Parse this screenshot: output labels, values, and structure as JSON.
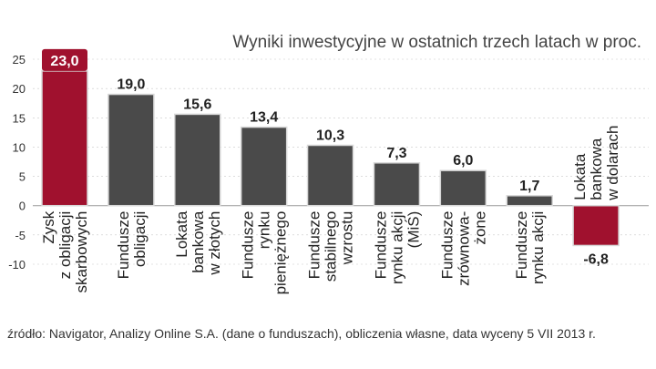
{
  "chart_data": {
    "type": "bar",
    "title": "Wyniki inwestycyjne w ostatnich  trzech latach w proc.",
    "xlabel": "",
    "ylabel": "",
    "ylim": [
      -10,
      25
    ],
    "yticks": [
      "25",
      "20",
      "15",
      "10",
      "5",
      "0",
      "-5",
      "-10"
    ],
    "categories": [
      [
        "Zysk",
        "z obligacji",
        "skarbowych"
      ],
      [
        "Fundusze",
        "obligacji"
      ],
      [
        "Lokata",
        "bankowa",
        "w złotych"
      ],
      [
        "Fundusze",
        "rynku",
        "pieniężnego"
      ],
      [
        "Fundusze",
        "stabilnego",
        "wzrostu"
      ],
      [
        "Fundusze",
        "rynku akcji",
        "(MiŚ)"
      ],
      [
        "Fundusze",
        "zrównowa-",
        "żone"
      ],
      [
        "Fundusze",
        "rynku akcji"
      ],
      [
        "Lokata",
        "bankowa",
        "w dolarach"
      ]
    ],
    "values": [
      23.0,
      19.0,
      15.6,
      13.4,
      10.3,
      7.3,
      6.0,
      1.7,
      -6.8
    ],
    "value_labels": [
      "23,0",
      "19,0",
      "15,6",
      "13,4",
      "10,3",
      "7,3",
      "6,0",
      "1,7",
      "-6,8"
    ],
    "highlighted": [
      0,
      8
    ],
    "source": "źródło: Navigator, Analizy Online S.A. (dane o funduszach), obliczenia własne, data wyceny 5 VII 2013 r."
  },
  "colors": {
    "bar": "#4a4a4a",
    "highlight": "#a0112e",
    "baseline": "#999999",
    "grid": "#c8c8c8"
  }
}
